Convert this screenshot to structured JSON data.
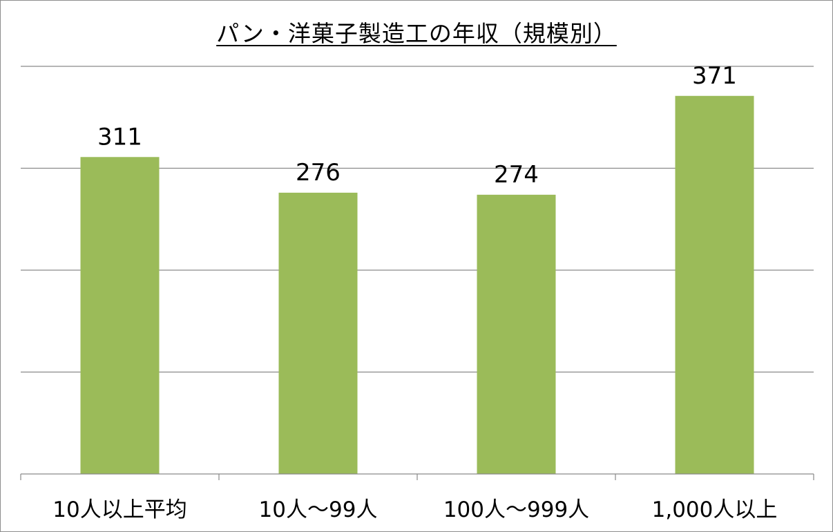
{
  "chart_data": {
    "type": "bar",
    "title": "パン・洋菓子製造工の年収（規模別）",
    "categories": [
      "10人以上平均",
      "10人～99人",
      "100人～999人",
      "1,000人以上"
    ],
    "series": [
      {
        "values": [
          311,
          276,
          274,
          371
        ]
      }
    ],
    "xlabel": "",
    "ylabel": "",
    "ylim": [
      0,
      400
    ],
    "y_gridline_step": 100,
    "y_tick_labels_shown": false,
    "grid": true,
    "legend": "none",
    "data_labels": true,
    "bar_color": "#9bbb59"
  }
}
